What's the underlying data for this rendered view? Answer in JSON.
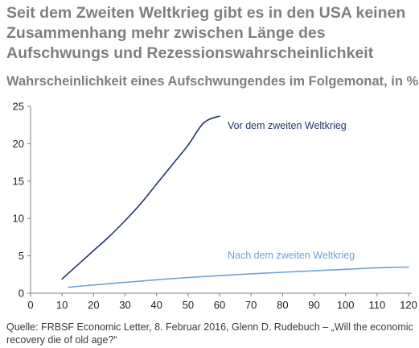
{
  "chart_data": {
    "type": "line",
    "title": "Seit dem Zweiten Weltkrieg gibt es in den USA keinen Zusammenhang mehr zwischen Länge des Aufschwungs und Rezessionswahrscheinlichkeit",
    "subtitle": "Wahrscheinlichkeit eines Aufschwungendes im Folgemonat, in %",
    "xlabel": "",
    "ylabel": "",
    "xlim": [
      0,
      120
    ],
    "ylim": [
      0,
      25
    ],
    "x_ticks": [
      "0",
      "10",
      "20",
      "30",
      "40",
      "50",
      "60",
      "70",
      "80",
      "90",
      "100",
      "110",
      "120"
    ],
    "y_ticks": [
      "0",
      "5",
      "10",
      "15",
      "20",
      "25"
    ],
    "grid": false,
    "series": [
      {
        "name": "Vor dem zweiten Weltkrieg",
        "color": "#1f3764",
        "x": [
          10,
          15,
          20,
          25,
          30,
          35,
          40,
          45,
          50,
          55,
          60
        ],
        "y": [
          1.9,
          3.8,
          5.7,
          7.6,
          9.7,
          12.0,
          14.6,
          17.2,
          19.8,
          22.8,
          23.7
        ]
      },
      {
        "name": "Nach dem zweiten Weltkrieg",
        "color": "#6fa3d8",
        "x": [
          12,
          20,
          30,
          40,
          50,
          60,
          70,
          80,
          90,
          100,
          110,
          120
        ],
        "y": [
          0.8,
          1.1,
          1.45,
          1.8,
          2.1,
          2.35,
          2.6,
          2.8,
          3.0,
          3.2,
          3.4,
          3.5
        ]
      }
    ]
  },
  "source": "Quelle: FRBSF Economic Letter, 8. Februar 2016, Glenn D. Rudebuch – „Will the economic recovery die of old age?“"
}
